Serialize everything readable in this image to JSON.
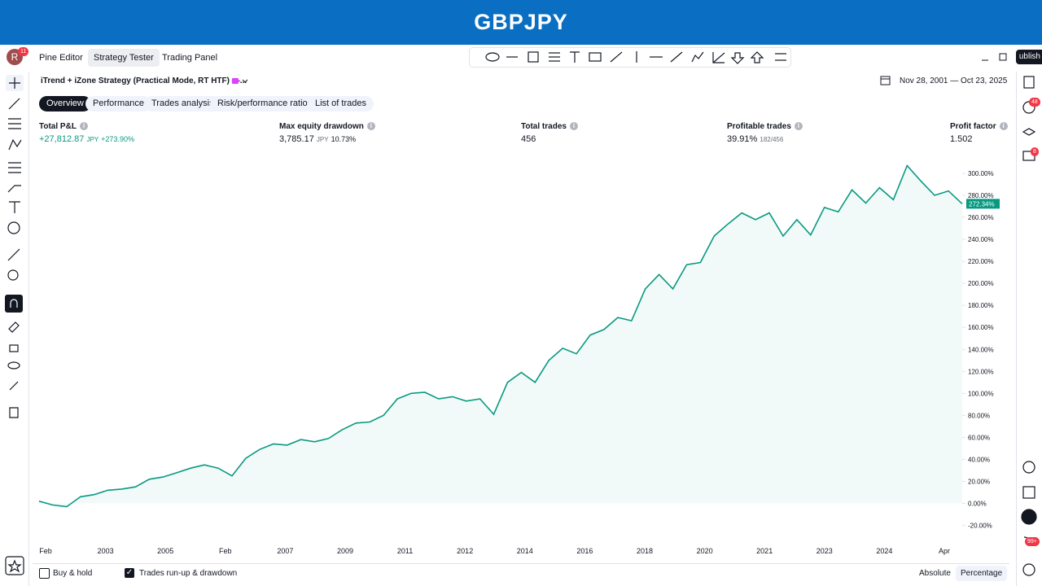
{
  "header": {
    "title": "GBPJPY"
  },
  "tabs": [
    "Pine Editor",
    "Strategy Tester",
    "Trading Panel"
  ],
  "avatar": {
    "letter": "R",
    "badge": "11"
  },
  "publish": "ublish",
  "badges": [
    "48",
    "8",
    "99+"
  ],
  "strategy": {
    "name": "iTrend + iZone Strategy (Practical Mode, RT HTF) —...",
    "date_range": "Nov 28, 2001 — Oct 23, 2025"
  },
  "subtabs": [
    "Overview",
    "Performance",
    "Trades analysis",
    "Risk/performance ratios",
    "List of trades"
  ],
  "metrics": [
    {
      "label": "Total P&L",
      "value": "+27,812.87",
      "unit": "JPY",
      "extra": "+273.90%"
    },
    {
      "label": "Max equity drawdown",
      "value": "3,785.17",
      "unit": "JPY",
      "extra": "10.73%"
    },
    {
      "label": "Total trades",
      "value": "456"
    },
    {
      "label": "Profitable trades",
      "value": "39.91%",
      "extra": "182/456"
    },
    {
      "label": "Profit factor",
      "value": "1.502"
    }
  ],
  "chart": {
    "type": "line",
    "color": "#089981",
    "ylim": [
      -27,
      317
    ],
    "yticks": [
      {
        "value": -20,
        "label": "-20.00%"
      },
      {
        "value": 0,
        "label": "0.00%"
      },
      {
        "value": 20,
        "label": "20.00%"
      },
      {
        "value": 40,
        "label": "40.00%"
      },
      {
        "value": 60,
        "label": "60.00%"
      },
      {
        "value": 80,
        "label": "80.00%"
      },
      {
        "value": 100,
        "label": "100.00%"
      },
      {
        "value": 120,
        "label": "120.00%"
      },
      {
        "value": 140,
        "label": "140.00%"
      },
      {
        "value": 160,
        "label": "160.00%"
      },
      {
        "value": 180,
        "label": "180.00%"
      },
      {
        "value": 200,
        "label": "200.00%"
      },
      {
        "value": 220,
        "label": "220.00%"
      },
      {
        "value": 240,
        "label": "240.00%"
      },
      {
        "value": 260,
        "label": "260.00%"
      },
      {
        "value": 280,
        "label": "280.00%"
      },
      {
        "value": 300,
        "label": "300.00%"
      }
    ],
    "x_labels": [
      "Feb",
      "2003",
      "2005",
      "Feb",
      "2007",
      "2009",
      "2011",
      "2012",
      "2014",
      "2016",
      "2018",
      "2020",
      "2021",
      "2023",
      "2024",
      "Apr"
    ],
    "values": [
      2,
      -1.5,
      -3,
      6,
      8,
      12,
      13,
      15,
      22,
      24,
      28,
      32,
      35,
      32,
      25,
      41,
      49,
      54,
      53,
      58,
      56,
      59,
      67,
      73,
      74,
      80,
      95,
      100,
      101,
      95,
      97,
      93,
      95,
      81,
      110,
      119,
      110,
      130,
      141,
      136,
      153,
      158,
      169,
      166,
      195,
      208,
      195,
      217,
      219,
      243,
      254,
      264,
      258,
      264,
      243,
      258,
      244,
      269,
      265,
      285,
      273,
      287,
      276,
      307,
      293,
      280,
      284,
      272.34
    ],
    "last_value_label": "272.34%"
  },
  "footer": {
    "buy_hold": "Buy & hold",
    "runup": "Trades run-up & drawdown",
    "absolute": "Absolute",
    "percentage": "Percentage"
  }
}
